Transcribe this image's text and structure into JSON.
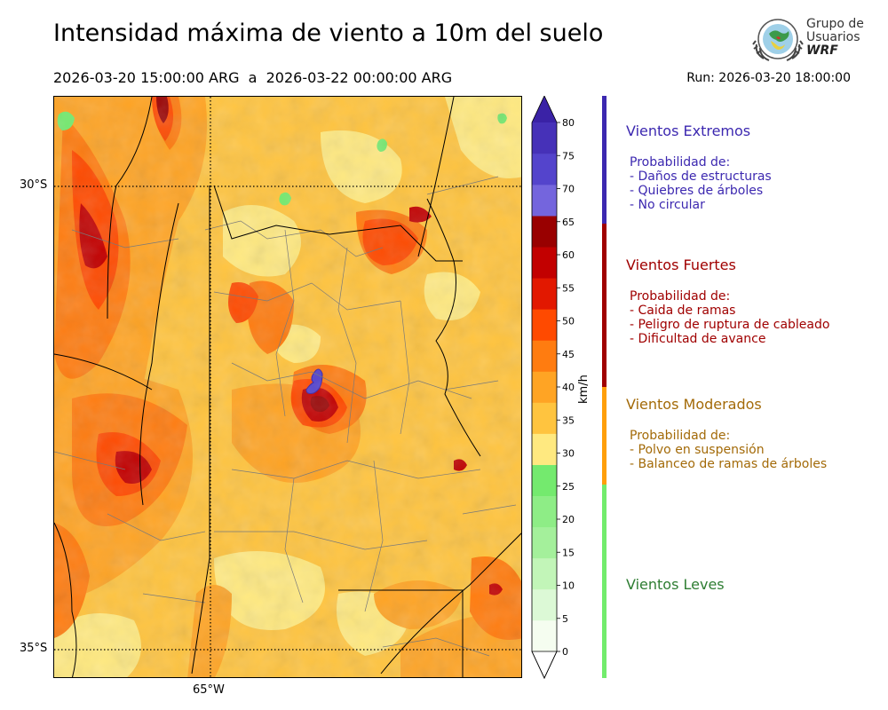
{
  "header": {
    "title": "Intensidad máxima de viento a 10m del suelo",
    "date_range": "2026-03-20 15:00:00 ARG  a  2026-03-22 00:00:00 ARG",
    "run": "Run: 2026-03-20 18:00:00"
  },
  "logo": {
    "line1": "Grupo de",
    "line2": "Usuarios",
    "line3": "WRF"
  },
  "axes": {
    "lat_labels": [
      "30°S",
      "35°S"
    ],
    "lon_labels": [
      "65°W"
    ]
  },
  "colorbar": {
    "units": "km/h",
    "ticks": [
      "80",
      "75",
      "70",
      "65",
      "60",
      "55",
      "50",
      "45",
      "40",
      "35",
      "30",
      "25",
      "20",
      "15",
      "10",
      "5",
      "0"
    ],
    "colors": [
      "#f5fdf0",
      "#dcf9d6",
      "#c2f5b8",
      "#a4f09b",
      "#8eed86",
      "#74ea6e",
      "#ffe980",
      "#ffc43f",
      "#ffa424",
      "#ff7c10",
      "#ff4a00",
      "#e21800",
      "#c20000",
      "#990000",
      "#7465dd",
      "#5444cc",
      "#4631b8"
    ],
    "top_arrow_color": "#3a22a6",
    "bottom_arrow_color": "#ffffff"
  },
  "categories": [
    {
      "title": "Vientos Extremos",
      "color": "#3c28b0",
      "prob_header": "Probabilidad de:",
      "items": [
        "- Daños de estructuras",
        "- Quiebres de árboles",
        "- No circular"
      ]
    },
    {
      "title": "Vientos Fuertes",
      "color": "#a00000",
      "prob_header": "Probabilidad de:",
      "items": [
        "- Caida de ramas",
        "- Peligro de ruptura de cableado",
        "- Dificultad de avance"
      ]
    },
    {
      "title": "Vientos Moderados",
      "color": "#a36a08",
      "prob_header": "Probabilidad de:",
      "items": [
        "- Polvo en suspensión",
        "- Balanceo de ramas de árboles"
      ]
    },
    {
      "title": "Vientos Leves",
      "color": "#2e7d32"
    }
  ],
  "category_bar_colors": [
    "#3c28b0",
    "#a00000",
    "#ff9f0a",
    "#72ec6c"
  ]
}
